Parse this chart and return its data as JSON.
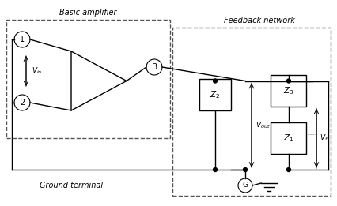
{
  "fig_width": 4.27,
  "fig_height": 2.61,
  "bg_color": "#ffffff",
  "line_color": "#000000",
  "dashed_color": "#555555",
  "title_basic": "Basic amplifier",
  "title_feedback": "Feedback network",
  "label_ground": "Ground terminal",
  "label_vin": "$V_{in}$",
  "label_vout": "$V_{out}$",
  "label_vf": "$V_f$",
  "label_z1": "$Z_1$",
  "label_z2": "$Z_2$",
  "label_z3": "$Z_3$",
  "label_G": "G",
  "node1": "1",
  "node2": "2",
  "node3": "3"
}
